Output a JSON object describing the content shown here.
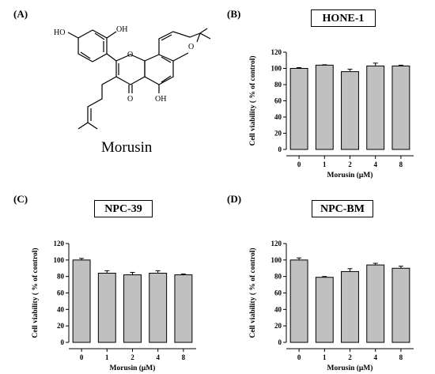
{
  "panels": {
    "A": {
      "label": "(A)",
      "molecule_name": "Morusin",
      "atom_labels": {
        "oh_left": "HO",
        "oh_top": "OH",
        "oh_bottom": "OH",
        "o_ring": "O",
        "o_pyran": "O",
        "o_ketone": "O"
      }
    },
    "B": {
      "label": "(B)"
    },
    "C": {
      "label": "(C)"
    },
    "D": {
      "label": "(D)"
    }
  },
  "chart_data": [
    {
      "type": "bar",
      "title": "HONE-1",
      "categories": [
        "0",
        "1",
        "2",
        "4",
        "8"
      ],
      "values": [
        100,
        104,
        96,
        103,
        103
      ],
      "errors": [
        1,
        0.5,
        3,
        3.5,
        1
      ],
      "xlabel": "Morusin (μM)",
      "ylabel": "Cell viability ( % of control)",
      "ylim": [
        0,
        120
      ],
      "yticks": [
        "0",
        "20",
        "40",
        "60",
        "80",
        "100",
        "120"
      ],
      "bar_color": "#c0c0c0"
    },
    {
      "type": "bar",
      "title": "NPC-39",
      "categories": [
        "0",
        "1",
        "2",
        "4",
        "8"
      ],
      "values": [
        100,
        84,
        82,
        84,
        82
      ],
      "errors": [
        2,
        3,
        3,
        3,
        1
      ],
      "xlabel": "Morusin (μM)",
      "ylabel": "Cell viability ( % of control)",
      "ylim": [
        0,
        120
      ],
      "yticks": [
        "0",
        "20",
        "40",
        "60",
        "80",
        "100",
        "120"
      ],
      "bar_color": "#c0c0c0"
    },
    {
      "type": "bar",
      "title": "NPC-BM",
      "categories": [
        "0",
        "1",
        "2",
        "4",
        "8"
      ],
      "values": [
        100,
        79,
        86,
        94,
        90
      ],
      "errors": [
        2.5,
        1,
        3.5,
        2,
        2.5
      ],
      "xlabel": "Morusin (μM)",
      "ylabel": "Cell viability ( % of control)",
      "ylim": [
        0,
        120
      ],
      "yticks": [
        "0",
        "20",
        "40",
        "60",
        "80",
        "100",
        "120"
      ],
      "bar_color": "#c0c0c0"
    }
  ]
}
